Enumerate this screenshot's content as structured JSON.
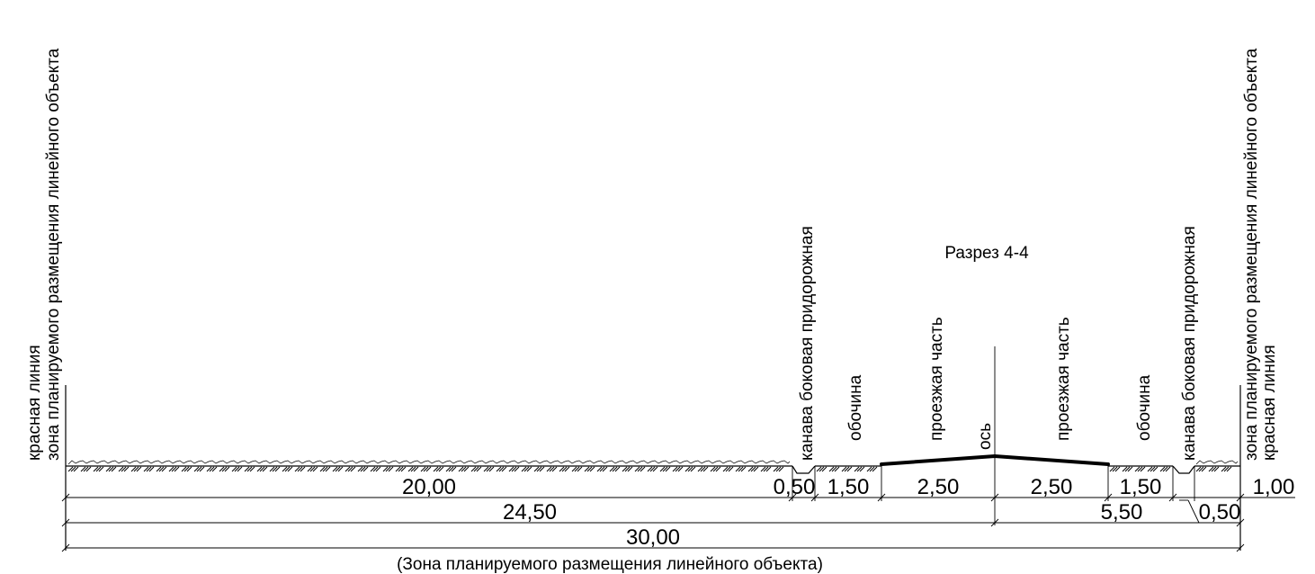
{
  "title": "Разрез 4-4",
  "caption": "(Зона планируемого размещения линейного объекта)",
  "labels": {
    "red_line": "красная линия",
    "zone_left": "зона планируемого размещения линейного объекта",
    "zone_right": "зона планируемого размещения линейного объекта",
    "red_line_right": "красная линия",
    "ditch_left": "канава боковая придорожная",
    "shoulder_left": "обочина",
    "carriageway_left": "проезжая часть",
    "axis": "ось",
    "carriageway_right": "проезжая часть",
    "shoulder_right": "обочина",
    "ditch_right": "канава боковая придорожная"
  },
  "dimensions": {
    "row1": {
      "zone_left": "20,00",
      "ditch_left": "0,50",
      "shoulder_left": "1,50",
      "carriageway_left": "2,50",
      "carriageway_right": "2,50",
      "shoulder_right": "1,50",
      "right_end": "1,00"
    },
    "row2": {
      "left": "24,50",
      "right": "5,50",
      "ditch_right": "0,50"
    },
    "row3": {
      "total": "30,00"
    }
  }
}
